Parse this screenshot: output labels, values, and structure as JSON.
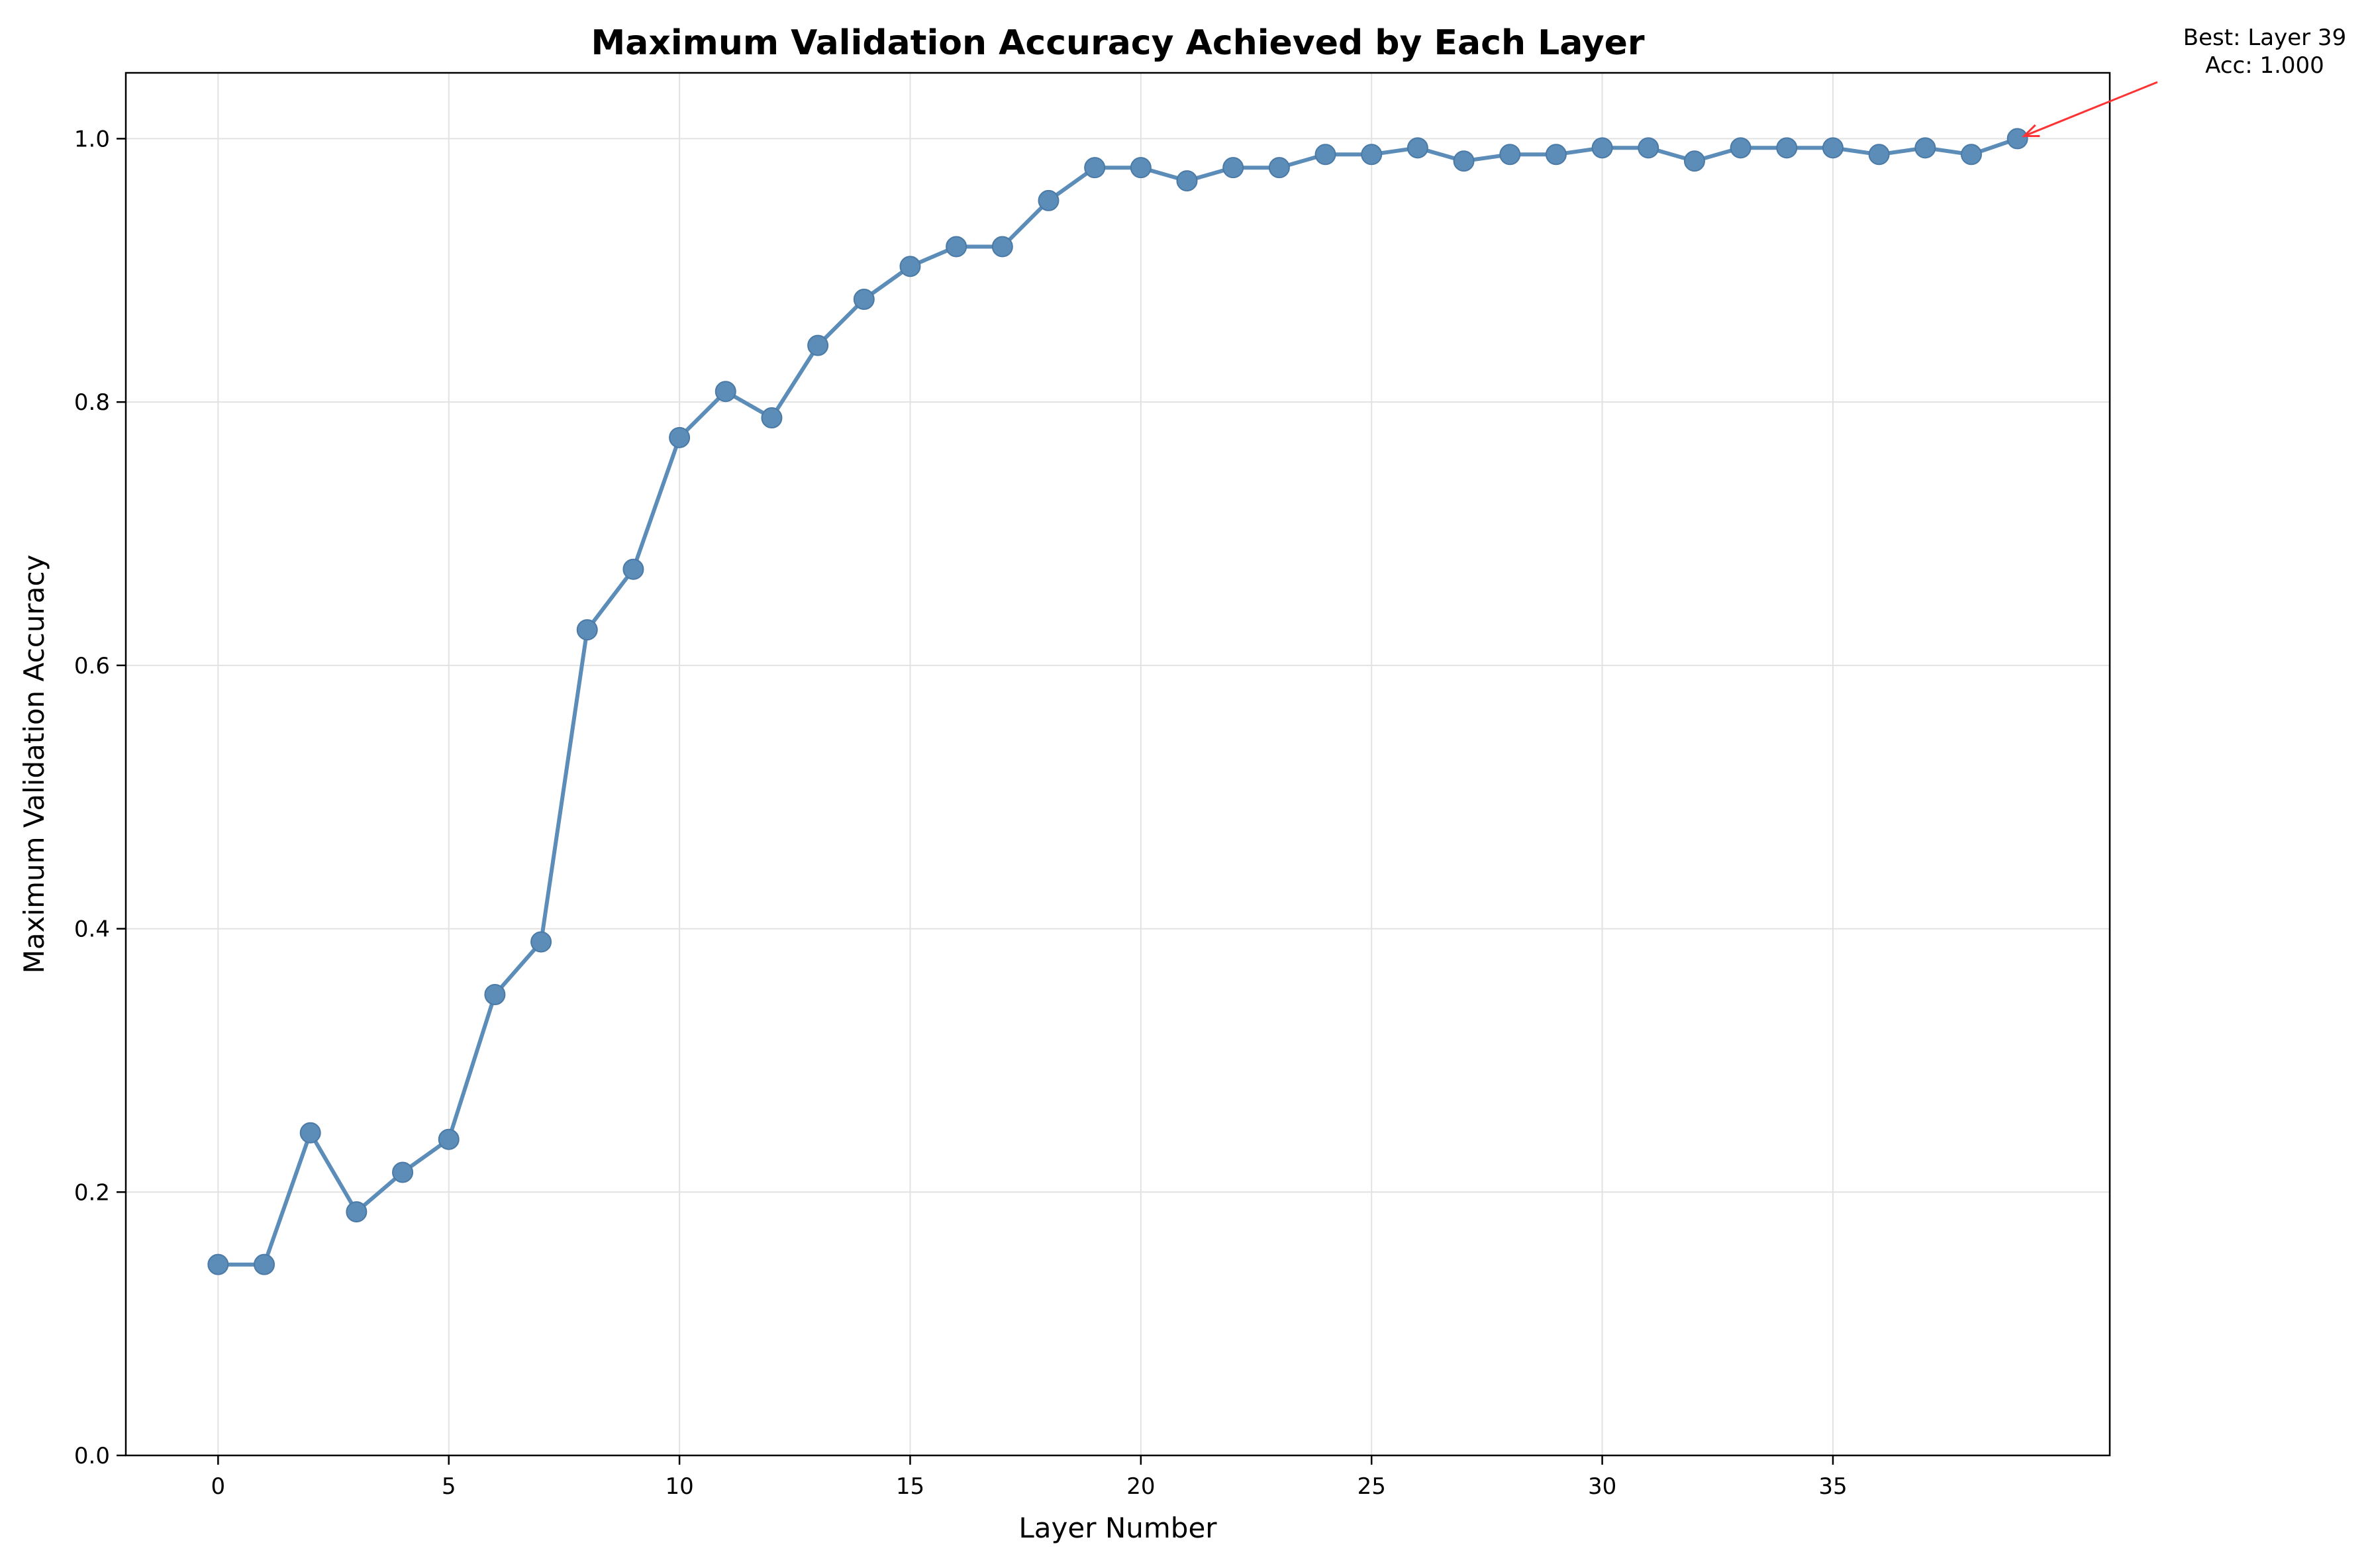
{
  "chart_data": {
    "type": "line",
    "title": "Maximum Validation Accuracy Achieved by Each Layer",
    "xlabel": "Layer Number",
    "ylabel": "Maximum Validation Accuracy",
    "xlim": [
      -2,
      41
    ],
    "ylim": [
      0,
      1.05
    ],
    "xticks": [
      0,
      5,
      10,
      15,
      20,
      25,
      30,
      35
    ],
    "yticks": [
      0.0,
      0.2,
      0.4,
      0.6,
      0.8,
      1.0
    ],
    "xtick_labels": [
      "0",
      "5",
      "10",
      "15",
      "20",
      "25",
      "30",
      "35"
    ],
    "ytick_labels": [
      "0.0",
      "0.2",
      "0.4",
      "0.6",
      "0.8",
      "1.0"
    ],
    "grid": true,
    "series": [
      {
        "color": "#5b8db8",
        "marker": "circle",
        "x": [
          0,
          1,
          2,
          3,
          4,
          5,
          6,
          7,
          8,
          9,
          10,
          11,
          12,
          13,
          14,
          15,
          16,
          17,
          18,
          19,
          20,
          21,
          22,
          23,
          24,
          25,
          26,
          27,
          28,
          29,
          30,
          31,
          32,
          33,
          34,
          35,
          36,
          37,
          38,
          39
        ],
        "y": [
          0.145,
          0.145,
          0.245,
          0.185,
          0.215,
          0.24,
          0.35,
          0.39,
          0.627,
          0.673,
          0.773,
          0.808,
          0.788,
          0.843,
          0.878,
          0.903,
          0.918,
          0.918,
          0.953,
          0.978,
          0.978,
          0.968,
          0.978,
          0.978,
          0.988,
          0.988,
          0.993,
          0.983,
          0.988,
          0.988,
          0.993,
          0.993,
          0.983,
          0.993,
          0.993,
          0.993,
          0.988,
          0.993,
          0.988,
          1.0
        ]
      }
    ],
    "annotation": {
      "line1": "Best: Layer 39",
      "line2": "Acc: 1.000",
      "point": [
        39,
        1.0
      ],
      "arrow_color": "#ff3333"
    }
  }
}
